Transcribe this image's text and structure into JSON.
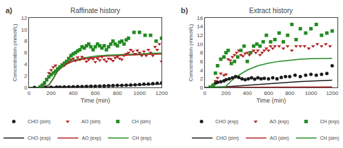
{
  "chart_data": [
    {
      "type": "line",
      "title": "Raffinate history",
      "annotations": [
        "a)"
      ],
      "xlabel": "Time (min)",
      "ylabel": "Concentration (mmol/L)",
      "xlim": [
        0,
        1200
      ],
      "ylim": [
        0,
        12
      ],
      "xticks": [
        0,
        200,
        400,
        600,
        800,
        1000,
        1200
      ],
      "yticks": [
        0,
        2,
        4,
        6,
        8,
        10,
        12
      ],
      "grid": false,
      "legend": "below",
      "series": [
        {
          "name": "CHO (exp)",
          "type": "line",
          "line_style": "solid",
          "color": "#1a1a1a",
          "x": [
            0,
            100,
            200,
            300,
            400,
            500,
            600,
            700,
            800,
            900,
            1000,
            1100,
            1200
          ],
          "values": [
            0,
            0.02,
            0.05,
            0.08,
            0.12,
            0.16,
            0.2,
            0.25,
            0.3,
            0.35,
            0.42,
            0.5,
            0.58
          ]
        },
        {
          "name": "AO (exp)",
          "type": "line",
          "line_style": "solid",
          "color": "#b22222",
          "x": [
            0,
            100,
            140,
            180,
            220,
            260,
            300,
            350,
            400,
            500,
            600,
            700,
            800,
            900,
            1000,
            1100,
            1200
          ],
          "values": [
            0,
            0.0,
            0.05,
            0.4,
            1.5,
            2.8,
            3.5,
            4.1,
            4.5,
            4.9,
            5.2,
            5.4,
            5.5,
            5.6,
            5.65,
            5.7,
            5.75
          ]
        },
        {
          "name": "CH (exp)",
          "type": "line",
          "line_style": "solid",
          "color": "#228B22",
          "x": [
            0,
            100,
            140,
            180,
            220,
            260,
            300,
            350,
            400,
            500,
            600,
            700,
            800,
            900,
            1000,
            1100,
            1200
          ],
          "values": [
            0,
            0.0,
            0.06,
            0.45,
            1.6,
            3.0,
            3.7,
            4.3,
            4.7,
            5.1,
            5.4,
            5.55,
            5.65,
            5.75,
            5.82,
            5.88,
            5.95
          ]
        },
        {
          "name": "CHO (sim)",
          "type": "scatter",
          "marker": "circle",
          "color": "#1a1a1a",
          "x": [
            50,
            100,
            150,
            200,
            250,
            280,
            320,
            360,
            400,
            440,
            480,
            520,
            560,
            600,
            640,
            680,
            720,
            760,
            800,
            840,
            880,
            920,
            960,
            1000,
            1040,
            1080,
            1120,
            1160,
            1200
          ],
          "values": [
            0.01,
            0.02,
            0.03,
            0.04,
            0.06,
            0.07,
            0.09,
            0.1,
            0.12,
            0.14,
            0.16,
            0.18,
            0.2,
            0.22,
            0.25,
            0.27,
            0.3,
            0.32,
            0.35,
            0.37,
            0.4,
            0.43,
            0.46,
            0.5,
            0.55,
            0.6,
            0.65,
            0.7,
            0.78
          ]
        },
        {
          "name": "AO (sim)",
          "type": "scatter",
          "marker": "triangle-down",
          "color": "#b22222",
          "x": [
            100,
            120,
            140,
            160,
            180,
            200,
            220,
            240,
            260,
            280,
            300,
            320,
            340,
            360,
            380,
            400,
            420,
            440,
            460,
            480,
            500,
            520,
            540,
            560,
            580,
            600,
            620,
            640,
            660,
            680,
            700,
            720,
            740,
            760,
            780,
            800,
            820,
            840,
            860,
            880,
            900,
            920,
            940,
            960,
            980,
            1000,
            1020,
            1040,
            1060,
            1080,
            1100,
            1120,
            1140,
            1160,
            1180,
            1200
          ],
          "values": [
            0.05,
            0.2,
            0.6,
            1.5,
            2.5,
            3.0,
            3.5,
            3.8,
            3.2,
            3.6,
            4.0,
            3.8,
            4.2,
            4.5,
            4.8,
            5.0,
            4.6,
            5.2,
            4.8,
            5.3,
            5.0,
            4.5,
            4.8,
            5.1,
            4.9,
            4.4,
            5.0,
            4.7,
            5.3,
            4.8,
            4.5,
            5.0,
            4.9,
            4.6,
            5.1,
            5.3,
            5.0,
            4.8,
            5.5,
            5.8,
            6.0,
            6.5,
            6.2,
            5.8,
            6.4,
            6.0,
            5.5,
            6.2,
            5.5,
            6.5,
            6.0,
            5.5,
            7.0,
            6.5,
            7.5,
            4.5
          ]
        },
        {
          "name": "CH (sim)",
          "type": "scatter",
          "marker": "square",
          "color": "#228B22",
          "x": [
            100,
            120,
            140,
            160,
            180,
            200,
            220,
            240,
            260,
            280,
            300,
            320,
            340,
            360,
            380,
            400,
            420,
            440,
            460,
            480,
            500,
            520,
            540,
            560,
            580,
            600,
            620,
            640,
            660,
            680,
            700,
            720,
            740,
            760,
            780,
            800,
            820,
            840,
            860,
            880,
            900,
            950,
            1000,
            1050,
            1100,
            1150,
            1200
          ],
          "values": [
            0.1,
            0.4,
            0.8,
            1.3,
            1.8,
            2.2,
            2.5,
            2.8,
            3.2,
            3.5,
            3.8,
            4.2,
            4.5,
            5.0,
            5.5,
            5.8,
            6.0,
            6.3,
            6.5,
            7.0,
            6.8,
            7.2,
            7.5,
            7.0,
            6.5,
            7.0,
            7.5,
            7.2,
            6.8,
            7.2,
            6.5,
            7.0,
            7.5,
            8.0,
            7.5,
            7.2,
            7.8,
            8.0,
            7.5,
            8.2,
            8.5,
            9.5,
            9.5,
            9.0,
            9.0,
            8.0,
            8.5
          ]
        }
      ]
    },
    {
      "type": "line",
      "title": "Extract history",
      "annotations": [
        "b)"
      ],
      "xlabel": "Time (min)",
      "ylabel": "Concentration (mmol/L)",
      "xlim": [
        0,
        1250
      ],
      "ylim": [
        0,
        16
      ],
      "xticks": [
        0,
        200,
        400,
        600,
        800,
        1000,
        1200
      ],
      "yticks": [
        0,
        2,
        4,
        6,
        8,
        10,
        12,
        14,
        16
      ],
      "grid": false,
      "legend": "below",
      "series": [
        {
          "name": "CHO (sim)",
          "type": "line",
          "line_style": "solid",
          "color": "#1a1a1a",
          "x": [
            0,
            100,
            200,
            300,
            400,
            500,
            600,
            700,
            800,
            900,
            1000,
            1100,
            1200
          ],
          "values": [
            0,
            0.05,
            0.15,
            0.3,
            0.5,
            0.7,
            0.9,
            1.05,
            1.2,
            1.35,
            1.45,
            1.55,
            1.65
          ]
        },
        {
          "name": "AO (sim)",
          "type": "line",
          "line_style": "solid",
          "color": "#b22222",
          "x": [
            0,
            100,
            200,
            300,
            400,
            500,
            600,
            700,
            800,
            900,
            1000,
            1100,
            1200
          ],
          "values": [
            0,
            0.01,
            0.02,
            0.03,
            0.04,
            0.05,
            0.06,
            0.07,
            0.08,
            0.09,
            0.1,
            0.11,
            0.12
          ]
        },
        {
          "name": "CH (sim)",
          "type": "line",
          "line_style": "solid",
          "color": "#228B22",
          "x": [
            0,
            100,
            150,
            180,
            200,
            220,
            250,
            300,
            350,
            400,
            500,
            600,
            700,
            800,
            900,
            1000,
            1100,
            1200
          ],
          "values": [
            0,
            0.0,
            0.02,
            0.1,
            0.3,
            0.8,
            1.5,
            2.5,
            3.3,
            4.0,
            5.0,
            5.6,
            6.0,
            6.3,
            6.5,
            6.6,
            6.65,
            6.7
          ]
        },
        {
          "name": "CHO (exp)",
          "type": "scatter",
          "marker": "circle",
          "color": "#1a1a1a",
          "x": [
            50,
            80,
            100,
            120,
            150,
            180,
            200,
            230,
            260,
            290,
            320,
            350,
            380,
            410,
            440,
            470,
            500,
            530,
            560,
            600,
            640,
            680,
            720,
            760,
            800,
            850,
            900,
            950,
            1000,
            1050,
            1100,
            1150,
            1200
          ],
          "values": [
            0.05,
            0.5,
            1.0,
            1.2,
            1.3,
            1.5,
            1.8,
            2.0,
            2.2,
            2.5,
            2.3,
            2.0,
            1.8,
            2.0,
            2.2,
            1.9,
            2.2,
            2.0,
            2.1,
            2.0,
            2.2,
            2.0,
            2.3,
            2.5,
            2.5,
            2.8,
            2.5,
            2.8,
            3.0,
            2.8,
            3.0,
            3.2,
            5.0
          ]
        },
        {
          "name": "AO (exp)",
          "type": "scatter",
          "marker": "triangle-down",
          "color": "#b22222",
          "x": [
            50,
            80,
            100,
            120,
            150,
            180,
            200,
            220,
            240,
            260,
            280,
            300,
            320,
            340,
            360,
            380,
            400,
            420,
            440,
            460,
            480,
            500,
            520,
            540,
            560,
            580,
            600,
            620,
            640,
            660,
            700,
            740,
            780,
            820,
            860,
            900,
            940,
            980,
            1020,
            1060,
            1100,
            1140,
            1180
          ],
          "values": [
            0.05,
            0.5,
            1.5,
            2.2,
            3.2,
            2.8,
            3.0,
            6.5,
            6.2,
            7.0,
            7.5,
            8.0,
            8.5,
            7.5,
            7.2,
            7.8,
            8.0,
            7.5,
            8.2,
            8.5,
            8.0,
            8.5,
            7.5,
            8.0,
            8.5,
            9.0,
            8.5,
            9.5,
            9.0,
            9.5,
            9.5,
            9.0,
            9.5,
            8.5,
            9.5,
            9.5,
            9.5,
            9.0,
            9.5,
            10.0,
            9.5,
            10.0,
            9.5
          ]
        },
        {
          "name": "CH (exp)",
          "type": "scatter",
          "marker": "square",
          "color": "#228B22",
          "x": [
            50,
            80,
            100,
            120,
            150,
            180,
            200,
            220,
            250,
            280,
            310,
            340,
            370,
            400,
            430,
            460,
            490,
            520,
            550,
            580,
            620,
            660,
            700,
            740,
            780,
            820,
            860,
            900,
            950,
            1000,
            1050,
            1100,
            1150,
            1200
          ],
          "values": [
            0.05,
            0.5,
            3.3,
            5.0,
            6.5,
            7.0,
            8.0,
            8.5,
            5.5,
            6.0,
            7.0,
            8.5,
            9.5,
            6.0,
            8.0,
            9.5,
            10.0,
            9.5,
            10.5,
            12.0,
            10.5,
            11.0,
            12.5,
            10.5,
            12.0,
            14.5,
            11.0,
            13.5,
            12.5,
            13.5,
            14.5,
            12.0,
            12.5,
            13.0
          ]
        }
      ]
    }
  ]
}
